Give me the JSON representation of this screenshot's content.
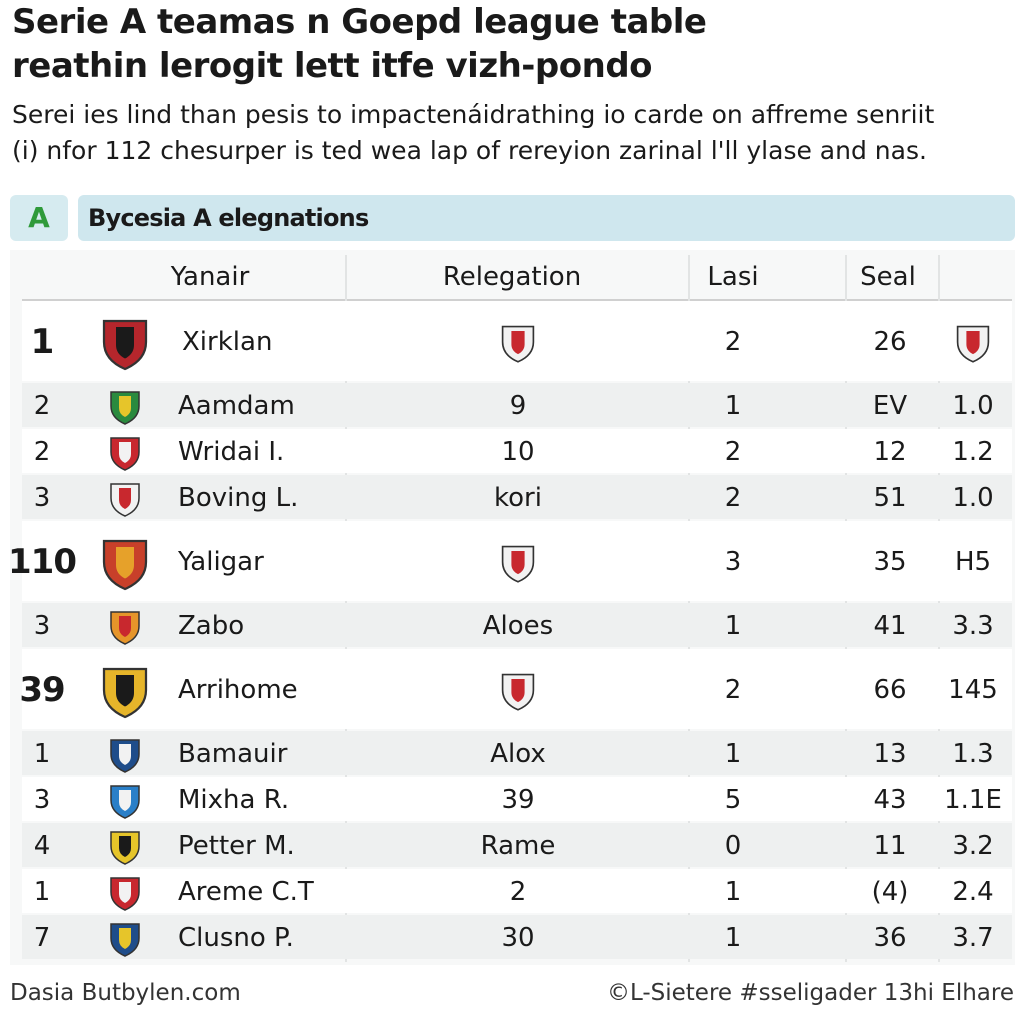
{
  "header": {
    "title": [
      "Serie A teamas n Goepd league table",
      "reathin lerogit lett itfe vizh-pondo"
    ],
    "subtitle": [
      "Serei ies lind than pesis to impactenáidrathing io carde on affreme senriit",
      "(i) nfor 112 chesurper is ted wea lap of rereyion zarinal l'll ylase and nas."
    ]
  },
  "section": {
    "badge": "A",
    "label": "Bycesia A elegnations"
  },
  "table": {
    "columns": [
      "Yanair",
      "Relegation",
      "Lasi",
      "Seal"
    ],
    "rows": [
      {
        "rank": "1",
        "team": "Xirklan",
        "lasi": "2",
        "seal": "26"
      },
      {
        "rank": "2",
        "team": "Aamdam",
        "relegation": "9",
        "lasi": "1",
        "seal": "EV",
        "extra": "1.0"
      },
      {
        "rank": "2",
        "team": "Wridai I.",
        "relegation": "10",
        "lasi": "2",
        "seal": "12",
        "extra": "1.2"
      },
      {
        "rank": "3",
        "team": "Boving L.",
        "relegation": "kori",
        "lasi": "2",
        "seal": "51",
        "extra": "1.0"
      },
      {
        "rank": "110",
        "team": "Yaligar",
        "lasi": "3",
        "seal": "35",
        "extra": "H5"
      },
      {
        "rank": "3",
        "team": "Zabo",
        "relegation": "Aloes",
        "lasi": "1",
        "seal": "41",
        "extra": "3.3"
      },
      {
        "rank": "39",
        "team": "Arrihome",
        "lasi": "2",
        "seal": "66",
        "extra": "145"
      },
      {
        "rank": "1",
        "team": "Bamauir",
        "relegation": "Alox",
        "lasi": "1",
        "seal": "13",
        "extra": "1.3"
      },
      {
        "rank": "3",
        "team": "Mixha R.",
        "relegation": "39",
        "lasi": "5",
        "seal": "43",
        "extra": "1.1E"
      },
      {
        "rank": "4",
        "team": "Petter M.",
        "relegation": "Rame",
        "lasi": "0",
        "seal": "11",
        "extra": "3.2"
      },
      {
        "rank": "1",
        "team": "Areme C.T",
        "relegation": "2",
        "lasi": "1",
        "seal": "(4)",
        "extra": "2.4"
      },
      {
        "rank": "7",
        "team": "Clusno P.",
        "relegation": "30",
        "lasi": "1",
        "seal": "36",
        "extra": "3.7"
      }
    ]
  },
  "footer": {
    "left": "Dasia Butbylen.com",
    "right": "©L-Sietere #sseligader 13hi Elhare"
  }
}
